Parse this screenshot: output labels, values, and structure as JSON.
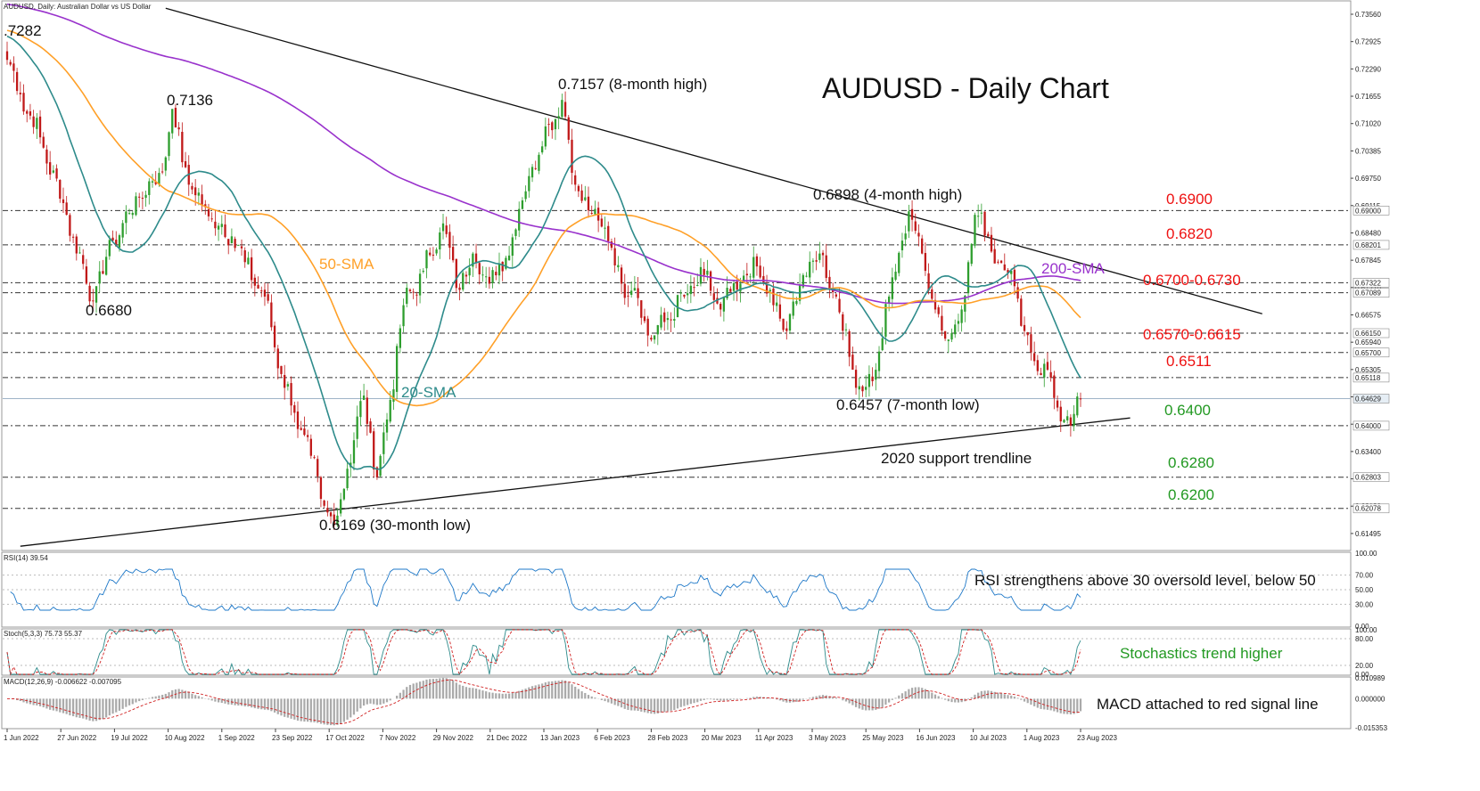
{
  "chart_data": {
    "type": "line",
    "header": "AUDUSD, Daily:  Australian Dollar vs US Dollar",
    "title": "AUDUSD -  Daily Chart",
    "x_axis_labels": [
      "1 Jun 2022",
      "27 Jun 2022",
      "19 Jul 2022",
      "10 Aug 2022",
      "1 Sep 2022",
      "23 Sep 2022",
      "17 Oct 2022",
      "7 Nov 2022",
      "29 Nov 2022",
      "21 Dec 2022",
      "13 Jan 2023",
      "6 Feb 2023",
      "28 Feb 2023",
      "20 Mar 2023",
      "11 Apr 2023",
      "3 May 2023",
      "25 May 2023",
      "16 Jun 2023",
      "10 Jul 2023",
      "1 Aug 2023",
      "23 Aug 2023"
    ],
    "price_axis": {
      "ylim": [
        0.611,
        0.7385
      ],
      "ticks": [
        "0.73560",
        "0.72925",
        "0.72290",
        "0.71655",
        "0.71020",
        "0.70385",
        "0.69750",
        "0.69115",
        "0.68480",
        "0.67845",
        "0.67210",
        "0.66575",
        "0.65940",
        "0.65305",
        "0.64670",
        "0.64035",
        "0.63400",
        "0.62765",
        "0.62130",
        "0.61495"
      ],
      "highlight_levels": [
        {
          "value": 0.69,
          "text": "0.69000"
        },
        {
          "value": 0.68201,
          "text": "0.68201"
        },
        {
          "value": 0.67322,
          "text": "0.67322"
        },
        {
          "value": 0.67089,
          "text": "0.67089"
        },
        {
          "value": 0.6615,
          "text": "0.66150"
        },
        {
          "value": 0.657,
          "text": "0.65700"
        },
        {
          "value": 0.65118,
          "text": "0.65118"
        },
        {
          "value": 0.64629,
          "text": "0.64629"
        },
        {
          "value": 0.64,
          "text": "0.64000"
        },
        {
          "value": 0.62803,
          "text": "0.62803"
        },
        {
          "value": 0.62078,
          "text": "0.62078"
        }
      ]
    },
    "price_series": {
      "name": "AUDUSD",
      "anchors": [
        [
          0,
          0.725
        ],
        [
          4,
          0.717
        ],
        [
          10,
          0.707
        ],
        [
          18,
          0.689
        ],
        [
          26,
          0.669
        ],
        [
          32,
          0.683
        ],
        [
          40,
          0.693
        ],
        [
          47,
          0.699
        ],
        [
          50,
          0.7136
        ],
        [
          55,
          0.696
        ],
        [
          62,
          0.688
        ],
        [
          68,
          0.684
        ],
        [
          72,
          0.678
        ],
        [
          78,
          0.67
        ],
        [
          83,
          0.652
        ],
        [
          87,
          0.643
        ],
        [
          92,
          0.633
        ],
        [
          95,
          0.623
        ],
        [
          99,
          0.6169
        ],
        [
          103,
          0.63
        ],
        [
          108,
          0.647
        ],
        [
          112,
          0.628
        ],
        [
          116,
          0.646
        ],
        [
          120,
          0.668
        ],
        [
          126,
          0.676
        ],
        [
          132,
          0.687
        ],
        [
          136,
          0.672
        ],
        [
          141,
          0.68
        ],
        [
          146,
          0.673
        ],
        [
          151,
          0.679
        ],
        [
          158,
          0.698
        ],
        [
          164,
          0.71
        ],
        [
          168,
          0.7157
        ],
        [
          172,
          0.696
        ],
        [
          176,
          0.69
        ],
        [
          181,
          0.686
        ],
        [
          186,
          0.673
        ],
        [
          190,
          0.672
        ],
        [
          195,
          0.66
        ],
        [
          200,
          0.665
        ],
        [
          205,
          0.67
        ],
        [
          211,
          0.675
        ],
        [
          216,
          0.667
        ],
        [
          222,
          0.673
        ],
        [
          227,
          0.677
        ],
        [
          232,
          0.668
        ],
        [
          236,
          0.662
        ],
        [
          241,
          0.675
        ],
        [
          246,
          0.68
        ],
        [
          251,
          0.67
        ],
        [
          255,
          0.656
        ],
        [
          259,
          0.648
        ],
        [
          263,
          0.653
        ],
        [
          267,
          0.67
        ],
        [
          271,
          0.683
        ],
        [
          273,
          0.6898
        ],
        [
          277,
          0.68
        ],
        [
          281,
          0.667
        ],
        [
          285,
          0.66
        ],
        [
          289,
          0.667
        ],
        [
          293,
          0.689
        ],
        [
          297,
          0.684
        ],
        [
          300,
          0.678
        ],
        [
          304,
          0.676
        ],
        [
          308,
          0.662
        ],
        [
          311,
          0.655
        ],
        [
          315,
          0.653
        ],
        [
          319,
          0.641
        ],
        [
          322,
          0.64
        ],
        [
          325,
          0.6462
        ]
      ]
    },
    "sma_series": [
      {
        "name": "200-SMA",
        "color": "#9932cc",
        "period": 200
      },
      {
        "name": "50-SMA",
        "color": "#ffa028",
        "period": 50
      },
      {
        "name": "20-SMA",
        "color": "#2e8b8b",
        "period": 20
      }
    ],
    "trendlines": [
      {
        "from": [
          48,
          0.737
        ],
        "to": [
          380,
          0.666
        ]
      },
      {
        "from": [
          4,
          0.612
        ],
        "to": [
          340,
          0.6418
        ]
      }
    ],
    "annotations": [
      {
        "text": ".7282",
        "color": "#111111"
      },
      {
        "text": "0.7136",
        "color": "#111111"
      },
      {
        "text": "0.7157 (8-month high)",
        "color": "#111111"
      },
      {
        "text": "0.6898 (4-month high)",
        "color": "#111111"
      },
      {
        "text": "0.6680",
        "color": "#111111"
      },
      {
        "text": "50-SMA",
        "color": "#ffa028"
      },
      {
        "text": "20-SMA",
        "color": "#2e8b8b"
      },
      {
        "text": "200-SMA",
        "color": "#9932cc"
      },
      {
        "text": "0.6457 (7-month low)",
        "color": "#111111"
      },
      {
        "text": "2020 support trendline",
        "color": "#111111"
      },
      {
        "text": "0.6169 (30-month low)",
        "color": "#111111"
      },
      {
        "text": "0.6900",
        "color": "#ee1111"
      },
      {
        "text": "0.6820",
        "color": "#ee1111"
      },
      {
        "text": "0.6700-0.6730",
        "color": "#ee1111"
      },
      {
        "text": "0.6570-0.6615",
        "color": "#ee1111"
      },
      {
        "text": "0.6511",
        "color": "#ee1111"
      },
      {
        "text": "0.6400",
        "color": "#229922"
      },
      {
        "text": "0.6280",
        "color": "#229922"
      },
      {
        "text": "0.6200",
        "color": "#229922"
      }
    ],
    "rsi": {
      "header": "RSI(14) 39.54",
      "value": 39.54,
      "ticks": [
        "100.00",
        "70.00",
        "50.00",
        "30.00",
        "0.00"
      ],
      "comment": "RSI strengthens above 30 oversold level, below 50"
    },
    "stoch": {
      "header": "Stoch(5,3,3) 75.73 55.37",
      "k": 75.73,
      "d": 55.37,
      "ticks": [
        "100.00",
        "80.00",
        "20.00",
        "0.00"
      ],
      "comment": "Stochastics trend higher"
    },
    "macd": {
      "header": "MACD(12,26,9) -0.006622 -0.007095",
      "main": -0.006622,
      "signal": -0.007095,
      "ticks": [
        "0.010989",
        "0.000000",
        "-0.015353"
      ],
      "comment": "MACD attached to red signal line"
    }
  }
}
